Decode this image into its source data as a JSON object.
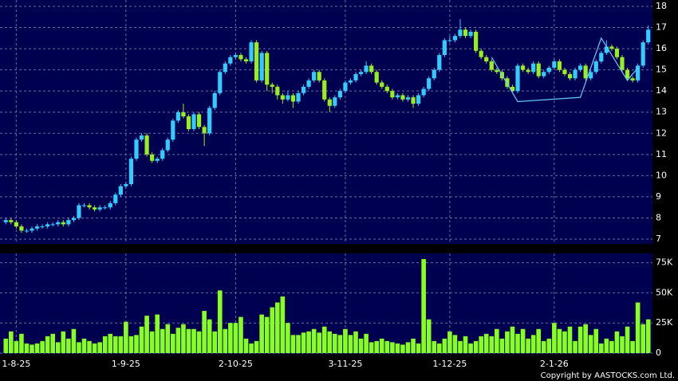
{
  "chart_data": [
    {
      "type": "candlestick",
      "categories": [
        null,
        null,
        "1-8-25",
        null,
        null,
        null,
        null,
        null,
        null,
        null,
        null,
        null,
        null,
        null,
        null,
        null,
        null,
        null,
        null,
        null,
        null,
        null,
        null,
        "1-9-25",
        null,
        null,
        null,
        null,
        null,
        null,
        null,
        null,
        null,
        null,
        null,
        null,
        null,
        null,
        null,
        null,
        null,
        null,
        null,
        null,
        "2-10-25",
        null,
        null,
        null,
        null,
        null,
        null,
        null,
        null,
        null,
        null,
        null,
        null,
        null,
        null,
        null,
        null,
        null,
        null,
        null,
        null,
        "3-11-25",
        null,
        null,
        null,
        null,
        null,
        null,
        null,
        null,
        null,
        null,
        null,
        null,
        null,
        null,
        null,
        null,
        null,
        null,
        null,
        "1-12-25",
        null,
        null,
        null,
        null,
        null,
        null,
        null,
        null,
        null,
        null,
        null,
        null,
        null,
        null,
        null,
        null,
        null,
        null,
        null,
        "2-1-26",
        null,
        null,
        null,
        null,
        null,
        null,
        null,
        null,
        null,
        null,
        null,
        null,
        null,
        null,
        null,
        null,
        null,
        null
      ],
      "open": [
        7.8,
        7.9,
        7.8,
        7.6,
        7.4,
        7.4,
        7.5,
        7.6,
        7.6,
        7.7,
        7.7,
        7.8,
        7.7,
        7.9,
        8.0,
        8.6,
        8.6,
        8.5,
        8.4,
        8.5,
        8.5,
        8.7,
        9.1,
        9.5,
        9.6,
        10.8,
        11.7,
        11.9,
        11.0,
        10.7,
        10.8,
        11.2,
        11.7,
        12.6,
        13.0,
        12.8,
        12.2,
        12.9,
        12.3,
        12.0,
        13.2,
        13.9,
        14.9,
        15.3,
        15.6,
        15.7,
        15.5,
        15.4,
        16.3,
        14.5,
        15.8,
        14.3,
        14.2,
        13.8,
        13.6,
        13.8,
        13.5,
        13.9,
        14.2,
        14.5,
        14.9,
        14.5,
        13.6,
        13.3,
        13.7,
        14.0,
        14.4,
        14.5,
        14.8,
        14.9,
        15.2,
        14.9,
        14.4,
        14.2,
        14.0,
        13.7,
        13.8,
        13.6,
        13.7,
        13.4,
        13.8,
        14.1,
        14.6,
        15.0,
        15.7,
        16.4,
        16.4,
        16.6,
        16.9,
        16.6,
        16.8,
        15.9,
        15.6,
        15.4,
        15.0,
        14.9,
        14.6,
        14.2,
        14.0,
        15.2,
        15.0,
        14.9,
        15.3,
        14.7,
        14.9,
        15.1,
        15.4,
        15.0,
        14.8,
        14.6,
        15.0,
        15.2,
        14.6,
        14.9,
        15.4,
        15.8,
        16.1,
        16.0,
        15.6,
        15.0,
        14.6,
        14.5,
        15.2,
        16.3
      ],
      "high": [
        8.0,
        8.0,
        7.9,
        7.7,
        7.5,
        7.6,
        7.7,
        7.7,
        7.8,
        7.8,
        7.9,
        7.9,
        8.0,
        8.1,
        8.7,
        8.7,
        8.7,
        8.6,
        8.6,
        8.6,
        8.8,
        9.2,
        9.6,
        9.7,
        10.9,
        11.8,
        12.0,
        12.0,
        11.1,
        10.9,
        11.3,
        11.8,
        12.7,
        13.1,
        13.4,
        12.9,
        13.0,
        13.0,
        12.4,
        13.3,
        14.0,
        15.0,
        15.4,
        15.7,
        15.8,
        15.8,
        15.6,
        16.4,
        16.4,
        15.9,
        15.9,
        14.4,
        14.3,
        13.9,
        14.0,
        13.9,
        14.0,
        14.3,
        14.6,
        15.0,
        15.0,
        14.6,
        13.7,
        13.8,
        14.1,
        14.5,
        14.6,
        14.9,
        15.0,
        15.4,
        15.3,
        15.0,
        14.5,
        14.3,
        14.1,
        13.9,
        13.9,
        13.8,
        13.8,
        13.9,
        14.2,
        14.7,
        15.1,
        15.8,
        16.5,
        16.6,
        16.7,
        17.4,
        17.0,
        16.9,
        16.9,
        16.0,
        15.7,
        15.5,
        15.1,
        15.0,
        14.7,
        14.3,
        15.3,
        15.3,
        15.1,
        15.4,
        15.4,
        15.0,
        15.2,
        15.5,
        15.5,
        15.1,
        14.9,
        15.1,
        15.3,
        15.3,
        15.0,
        15.5,
        15.9,
        16.4,
        16.2,
        16.1,
        15.7,
        15.1,
        14.7,
        15.3,
        16.4,
        17.1
      ],
      "low": [
        7.7,
        7.7,
        7.5,
        7.3,
        7.3,
        7.3,
        7.4,
        7.5,
        7.5,
        7.6,
        7.6,
        7.6,
        7.6,
        7.8,
        7.9,
        8.5,
        8.4,
        8.3,
        8.3,
        8.4,
        8.4,
        8.6,
        9.0,
        9.4,
        9.5,
        10.7,
        11.6,
        10.9,
        10.6,
        10.6,
        10.7,
        11.1,
        11.6,
        12.5,
        12.7,
        12.1,
        12.1,
        12.2,
        11.4,
        11.9,
        13.1,
        13.8,
        14.8,
        15.2,
        15.5,
        15.4,
        15.3,
        15.3,
        14.4,
        14.4,
        14.0,
        13.9,
        13.6,
        13.4,
        13.5,
        13.2,
        13.4,
        13.8,
        14.1,
        14.4,
        14.4,
        13.5,
        13.0,
        13.2,
        13.6,
        13.9,
        14.3,
        14.4,
        14.7,
        14.8,
        14.8,
        14.3,
        14.1,
        13.9,
        13.6,
        13.6,
        13.5,
        13.5,
        13.2,
        13.3,
        13.7,
        14.0,
        14.5,
        14.9,
        15.6,
        16.3,
        16.3,
        16.5,
        16.5,
        16.5,
        15.8,
        15.5,
        15.3,
        14.9,
        14.8,
        14.5,
        14.1,
        13.9,
        13.9,
        14.9,
        14.8,
        14.8,
        14.6,
        14.6,
        14.8,
        15.0,
        14.9,
        14.7,
        14.5,
        14.5,
        14.9,
        14.5,
        14.5,
        14.8,
        15.3,
        15.7,
        15.9,
        15.5,
        14.9,
        14.5,
        14.4,
        14.4,
        15.1,
        16.2
      ],
      "close": [
        7.9,
        7.8,
        7.6,
        7.4,
        7.4,
        7.5,
        7.6,
        7.6,
        7.7,
        7.7,
        7.8,
        7.7,
        7.9,
        8.0,
        8.6,
        8.6,
        8.5,
        8.4,
        8.5,
        8.5,
        8.7,
        9.1,
        9.5,
        9.6,
        10.8,
        11.7,
        11.9,
        11.0,
        10.7,
        10.8,
        11.2,
        11.7,
        12.6,
        13.0,
        12.8,
        12.2,
        12.9,
        12.3,
        12.0,
        13.2,
        13.9,
        14.9,
        15.3,
        15.6,
        15.7,
        15.5,
        15.4,
        16.3,
        14.5,
        15.8,
        14.3,
        14.2,
        13.8,
        13.6,
        13.8,
        13.5,
        13.9,
        14.2,
        14.5,
        14.9,
        14.5,
        13.6,
        13.3,
        13.7,
        14.0,
        14.4,
        14.5,
        14.8,
        14.9,
        15.2,
        14.9,
        14.4,
        14.2,
        14.0,
        13.7,
        13.8,
        13.6,
        13.7,
        13.4,
        13.8,
        14.1,
        14.6,
        15.0,
        15.7,
        16.4,
        16.4,
        16.6,
        16.9,
        16.6,
        16.8,
        15.9,
        15.6,
        15.4,
        15.0,
        14.9,
        14.6,
        14.2,
        14.0,
        15.2,
        15.0,
        14.9,
        15.3,
        14.7,
        14.9,
        15.1,
        15.4,
        15.0,
        14.8,
        14.6,
        15.0,
        15.2,
        14.6,
        14.9,
        15.4,
        15.8,
        16.1,
        16.0,
        15.6,
        15.0,
        14.6,
        14.5,
        15.2,
        16.3,
        16.9
      ],
      "up_color": "#33ccff",
      "down_color": "#99ee22",
      "pattern": {
        "color": "#66ccff",
        "x": [
          93,
          98,
          110,
          114,
          119,
          121
        ],
        "values": [
          15.6,
          13.5,
          13.7,
          16.5,
          14.5,
          15.1
        ]
      },
      "ylim": [
        7,
        18
      ],
      "yticks": [
        7,
        8,
        9,
        10,
        11,
        12,
        13,
        14,
        15,
        16,
        17,
        18
      ],
      "grid": true
    },
    {
      "type": "bar",
      "values": [
        12000,
        18000,
        10000,
        16000,
        8000,
        7000,
        8000,
        10000,
        14000,
        16000,
        9000,
        18000,
        12000,
        20000,
        9000,
        12000,
        10000,
        8000,
        9000,
        14000,
        16000,
        14000,
        14000,
        26000,
        14000,
        15000,
        22000,
        31000,
        18000,
        32000,
        20000,
        24000,
        16000,
        21000,
        24000,
        20000,
        20000,
        18000,
        35000,
        28000,
        18000,
        52000,
        20000,
        25000,
        25000,
        30000,
        12000,
        8000,
        10000,
        32000,
        30000,
        38000,
        42000,
        47000,
        25000,
        15000,
        15000,
        17000,
        18000,
        20000,
        17000,
        22000,
        18000,
        16000,
        15000,
        20000,
        15000,
        18000,
        12000,
        16000,
        9000,
        10000,
        12000,
        10000,
        9000,
        8000,
        7000,
        9000,
        12000,
        8000,
        78000,
        28000,
        10000,
        8000,
        12000,
        18000,
        15000,
        10000,
        14000,
        8000,
        10000,
        14000,
        16000,
        14000,
        20000,
        12000,
        18000,
        22000,
        16000,
        20000,
        12000,
        15000,
        20000,
        10000,
        12000,
        25000,
        20000,
        18000,
        22000,
        10000,
        22000,
        24000,
        15000,
        20000,
        8000,
        12000,
        10000,
        18000,
        14000,
        22000,
        10000,
        42000,
        24000,
        28000
      ],
      "color": "#88ff22",
      "ylim": [
        0,
        82000
      ],
      "yticks": [
        0,
        {
          "value": 25000,
          "label": "25K"
        },
        {
          "value": 50000,
          "label": "50K"
        },
        {
          "value": 75000,
          "label": "75K"
        }
      ],
      "grid": true
    }
  ],
  "copyright": "Copyright by AASTOCKS.com Ltd."
}
